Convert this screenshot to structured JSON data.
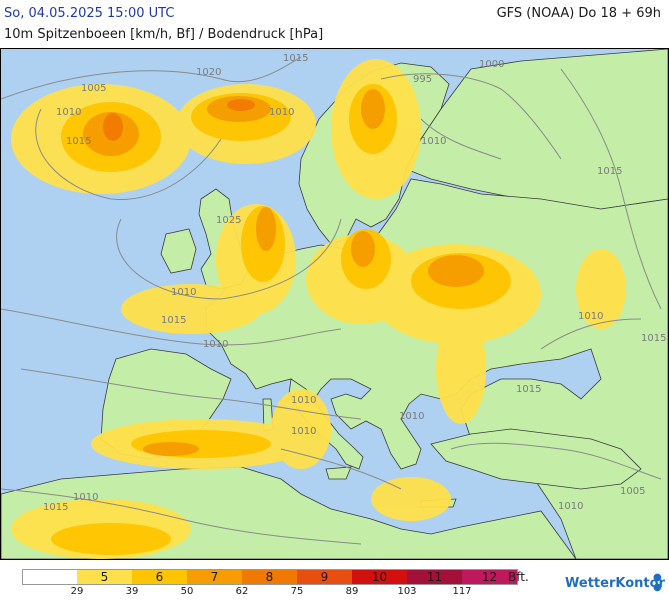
{
  "header": {
    "date_line": "So, 04.05.2025 15:00 UTC",
    "subtitle": "10m Spitzenboeen [km/h, Bf] / Bodendruck [hPa]",
    "model_line": "GFS (NOAA) Do 18 + 69h"
  },
  "isobar_labels": [
    "1015",
    "1020",
    "1005",
    "1010",
    "1010",
    "1015",
    "995",
    "1000",
    "1010",
    "1015",
    "1025",
    "1010",
    "1015",
    "1015",
    "1010",
    "1010",
    "1010",
    "1010",
    "1015",
    "1010",
    "1015",
    "1010",
    "1005",
    "1010"
  ],
  "legend": {
    "bft_levels": [
      "",
      "5",
      "6",
      "7",
      "8",
      "9",
      "10",
      "11",
      "12"
    ],
    "kmh_breaks": [
      "29",
      "39",
      "50",
      "62",
      "75",
      "89",
      "103",
      "117"
    ],
    "unit": "Bft.",
    "colors": [
      "#ffffff",
      "#ffe04a",
      "#ffc400",
      "#f59c00",
      "#f07a00",
      "#e84e10",
      "#d31010",
      "#a3103a",
      "#c0185c"
    ]
  },
  "brand": {
    "name": "WetterKontor"
  },
  "colors": {
    "sea": "#aed1f2",
    "land": "#c4eea7",
    "wind_5": "#ffe04a",
    "wind_6": "#ffc400",
    "wind_7": "#f59c00",
    "wind_8": "#f07a00"
  }
}
